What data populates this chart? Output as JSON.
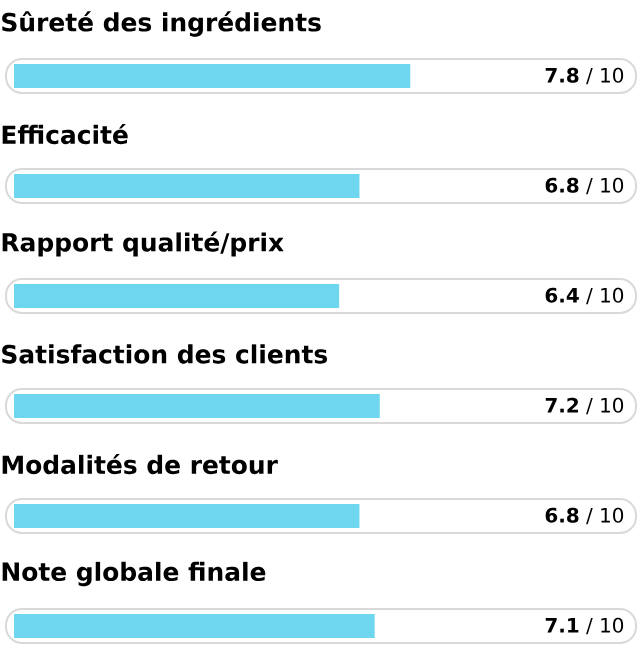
{
  "chart_data": {
    "type": "bar",
    "orientation": "horizontal",
    "categories": [
      "Sûreté des ingrédients",
      "Efficacité",
      "Rapport qualité/prix",
      "Satisfaction des clients",
      "Modalités de retour",
      "Note globale finale"
    ],
    "values": [
      7.8,
      6.8,
      6.4,
      7.2,
      6.8,
      7.1
    ],
    "value_labels": [
      "**7.8** / 10",
      "**6.8** / 10",
      "**6.4** / 10",
      "**7.2** / 10",
      "**6.8** / 10",
      "**7.1** / 10"
    ],
    "color": "#6fd6ef"
  }
}
